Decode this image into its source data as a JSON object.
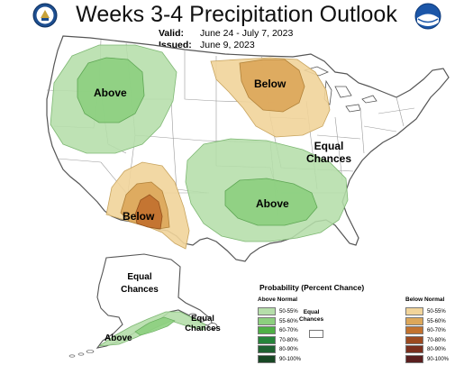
{
  "header": {
    "title": "Weeks 3-4 Precipitation Outlook",
    "valid_label": "Valid:",
    "valid_value": "June 24 - July 7, 2023",
    "issued_label": "Issued:",
    "issued_value": "June 9, 2023"
  },
  "map_labels": {
    "northwest": "Above",
    "upper_midwest": "Below",
    "east_equal_1": "Equal",
    "east_equal_2": "Chances",
    "southwest": "Below",
    "south_central": "Above",
    "alaska_equal_1": "Equal",
    "alaska_equal_2": "Chances",
    "alaska_above": "Above",
    "aleutian_equal_1": "Equal",
    "aleutian_equal_2": "Chances"
  },
  "legend": {
    "title": "Probability (Percent Chance)",
    "above_header": "Above Normal",
    "below_header": "Below Normal",
    "equal_1": "Equal",
    "equal_2": "Chances",
    "above": [
      {
        "label": "50-55%",
        "color": "#b5deaa"
      },
      {
        "label": "55-60%",
        "color": "#8ccf7e"
      },
      {
        "label": "60-70%",
        "color": "#4fb046"
      },
      {
        "label": "70-80%",
        "color": "#26843a"
      },
      {
        "label": "80-90%",
        "color": "#1f6131"
      },
      {
        "label": "90-100%",
        "color": "#184724"
      }
    ],
    "below": [
      {
        "label": "50-55%",
        "color": "#f1d49a"
      },
      {
        "label": "55-60%",
        "color": "#dca75a"
      },
      {
        "label": "60-70%",
        "color": "#c2722f"
      },
      {
        "label": "70-80%",
        "color": "#9c4a20"
      },
      {
        "label": "80-90%",
        "color": "#7a2f1e"
      },
      {
        "label": "90-100%",
        "color": "#5a1f1f"
      }
    ]
  }
}
